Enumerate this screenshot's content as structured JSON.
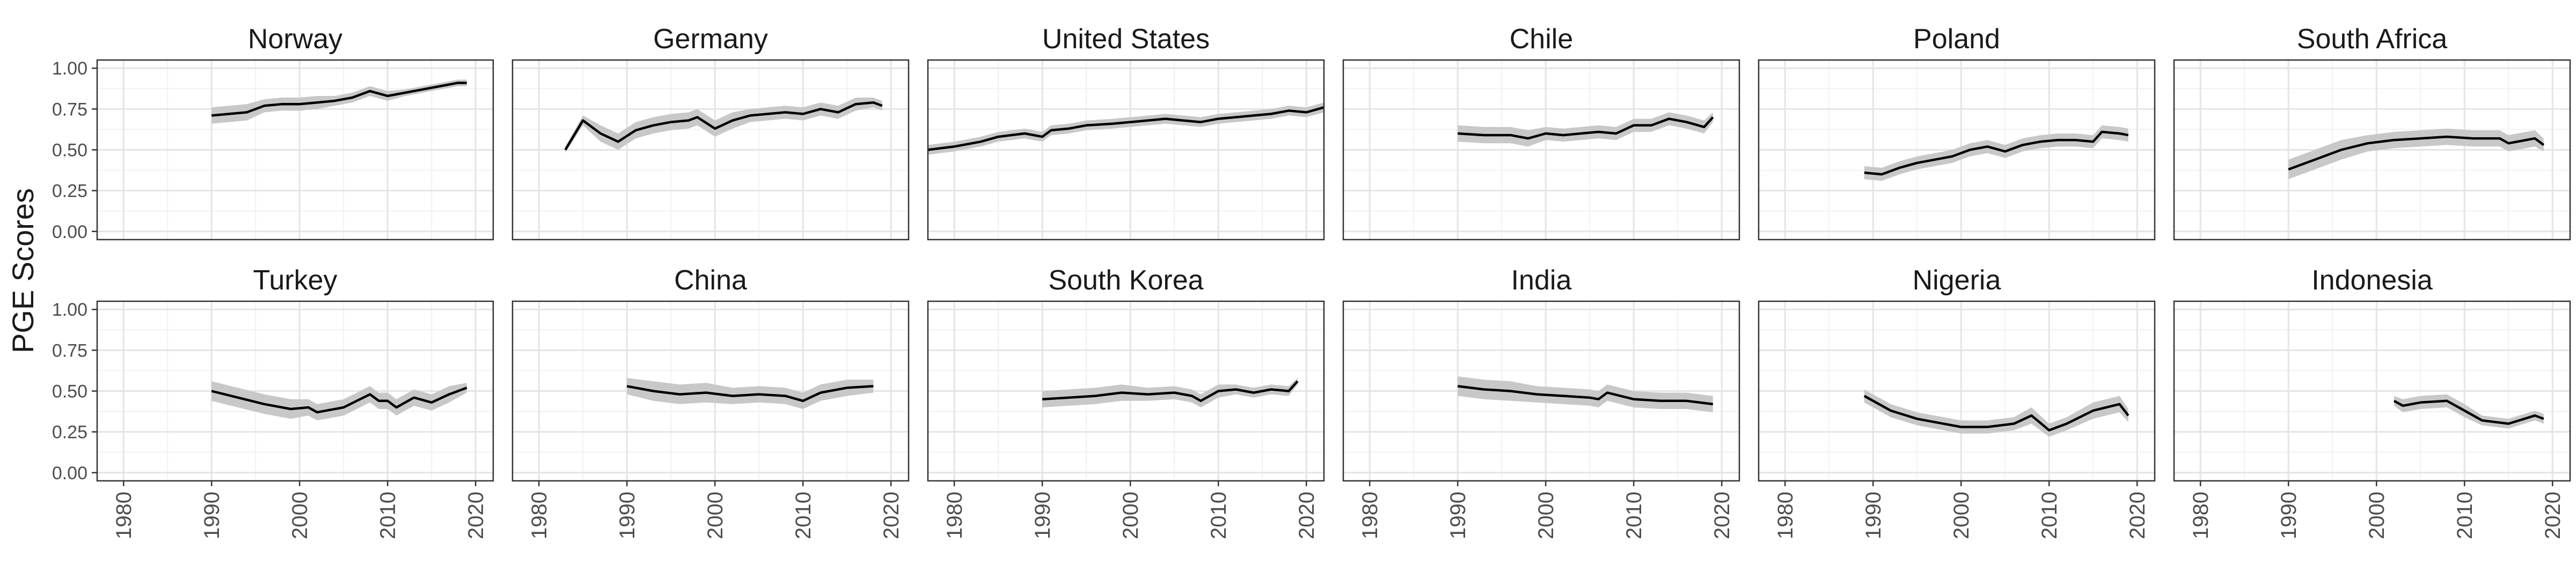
{
  "chart_data": {
    "type": "line",
    "layout": "small-multiples",
    "rows": 2,
    "cols": 6,
    "ylabel": "PGE Scores",
    "xlim": [
      1977,
      2022
    ],
    "ylim": [
      -0.05,
      1.05
    ],
    "x_ticks": [
      1980,
      1990,
      2000,
      2010,
      2020
    ],
    "y_ticks": [
      0.0,
      0.25,
      0.5,
      0.75,
      1.0
    ],
    "y_tick_labels": [
      "0.00",
      "0.25",
      "0.50",
      "0.75",
      "1.00"
    ],
    "grid": true,
    "line_color": "#000000",
    "band_color": "#c8c8c8",
    "panels": [
      {
        "title": "Norway",
        "x": [
          1990,
          1992,
          1994,
          1996,
          1998,
          2000,
          2002,
          2004,
          2006,
          2008,
          2010,
          2012,
          2014,
          2016,
          2018,
          2019
        ],
        "y": [
          0.71,
          0.72,
          0.73,
          0.77,
          0.78,
          0.78,
          0.79,
          0.8,
          0.82,
          0.86,
          0.83,
          0.85,
          0.87,
          0.89,
          0.91,
          0.91
        ],
        "band": [
          0.05,
          0.05,
          0.05,
          0.04,
          0.04,
          0.04,
          0.04,
          0.03,
          0.03,
          0.03,
          0.03,
          0.02,
          0.02,
          0.02,
          0.02,
          0.02
        ]
      },
      {
        "title": "Germany",
        "x": [
          1983,
          1985,
          1987,
          1989,
          1991,
          1993,
          1995,
          1997,
          1998,
          2000,
          2002,
          2004,
          2006,
          2008,
          2010,
          2012,
          2014,
          2016,
          2018,
          2019
        ],
        "y": [
          0.5,
          0.68,
          0.6,
          0.55,
          0.62,
          0.65,
          0.67,
          0.68,
          0.7,
          0.63,
          0.68,
          0.71,
          0.72,
          0.73,
          0.72,
          0.75,
          0.73,
          0.78,
          0.79,
          0.77
        ],
        "band": [
          0.02,
          0.03,
          0.05,
          0.05,
          0.05,
          0.05,
          0.05,
          0.05,
          0.05,
          0.05,
          0.05,
          0.04,
          0.04,
          0.04,
          0.04,
          0.04,
          0.04,
          0.04,
          0.03,
          0.03
        ]
      },
      {
        "title": "United States",
        "x": [
          1977,
          1980,
          1983,
          1985,
          1988,
          1990,
          1991,
          1993,
          1995,
          1998,
          2000,
          2002,
          2004,
          2006,
          2008,
          2010,
          2012,
          2014,
          2016,
          2018,
          2020,
          2022
        ],
        "y": [
          0.5,
          0.52,
          0.55,
          0.58,
          0.6,
          0.58,
          0.62,
          0.63,
          0.65,
          0.66,
          0.67,
          0.68,
          0.69,
          0.68,
          0.67,
          0.69,
          0.7,
          0.71,
          0.72,
          0.74,
          0.73,
          0.76
        ],
        "band": [
          0.03,
          0.03,
          0.03,
          0.03,
          0.03,
          0.03,
          0.03,
          0.03,
          0.03,
          0.03,
          0.03,
          0.03,
          0.03,
          0.03,
          0.03,
          0.03,
          0.03,
          0.03,
          0.03,
          0.03,
          0.03,
          0.03
        ]
      },
      {
        "title": "Chile",
        "x": [
          1990,
          1993,
          1996,
          1998,
          2000,
          2002,
          2004,
          2006,
          2008,
          2010,
          2012,
          2014,
          2016,
          2018,
          2019
        ],
        "y": [
          0.6,
          0.59,
          0.59,
          0.57,
          0.6,
          0.59,
          0.6,
          0.61,
          0.6,
          0.65,
          0.65,
          0.69,
          0.67,
          0.64,
          0.7
        ],
        "band": [
          0.05,
          0.05,
          0.05,
          0.05,
          0.04,
          0.04,
          0.04,
          0.04,
          0.04,
          0.04,
          0.04,
          0.04,
          0.04,
          0.04,
          0.03
        ]
      },
      {
        "title": "Poland",
        "x": [
          1989,
          1991,
          1993,
          1995,
          1997,
          1999,
          2001,
          2003,
          2005,
          2007,
          2009,
          2011,
          2013,
          2015,
          2016,
          2018,
          2019
        ],
        "y": [
          0.36,
          0.35,
          0.39,
          0.42,
          0.44,
          0.46,
          0.5,
          0.52,
          0.49,
          0.53,
          0.55,
          0.56,
          0.56,
          0.55,
          0.61,
          0.6,
          0.59
        ],
        "band": [
          0.04,
          0.04,
          0.04,
          0.04,
          0.04,
          0.04,
          0.04,
          0.04,
          0.04,
          0.04,
          0.04,
          0.04,
          0.04,
          0.04,
          0.04,
          0.04,
          0.04
        ]
      },
      {
        "title": "South Africa",
        "x": [
          1990,
          1993,
          1996,
          1999,
          2002,
          2005,
          2008,
          2011,
          2014,
          2015,
          2018,
          2019
        ],
        "y": [
          0.38,
          0.44,
          0.5,
          0.54,
          0.56,
          0.57,
          0.58,
          0.57,
          0.57,
          0.54,
          0.57,
          0.53
        ],
        "band": [
          0.06,
          0.06,
          0.06,
          0.05,
          0.05,
          0.05,
          0.05,
          0.05,
          0.05,
          0.05,
          0.05,
          0.04
        ]
      },
      {
        "title": "Turkey",
        "x": [
          1990,
          1993,
          1996,
          1999,
          2001,
          2002,
          2005,
          2008,
          2009,
          2010,
          2011,
          2013,
          2015,
          2017,
          2019
        ],
        "y": [
          0.5,
          0.46,
          0.42,
          0.39,
          0.4,
          0.37,
          0.4,
          0.48,
          0.44,
          0.44,
          0.4,
          0.46,
          0.43,
          0.48,
          0.52
        ],
        "band": [
          0.06,
          0.06,
          0.06,
          0.06,
          0.05,
          0.05,
          0.05,
          0.05,
          0.05,
          0.05,
          0.05,
          0.05,
          0.05,
          0.05,
          0.03
        ]
      },
      {
        "title": "China",
        "x": [
          1990,
          1993,
          1996,
          1999,
          2002,
          2005,
          2008,
          2010,
          2012,
          2015,
          2018
        ],
        "y": [
          0.53,
          0.5,
          0.48,
          0.49,
          0.47,
          0.48,
          0.47,
          0.44,
          0.49,
          0.52,
          0.53
        ],
        "band": [
          0.05,
          0.06,
          0.06,
          0.06,
          0.05,
          0.05,
          0.05,
          0.05,
          0.05,
          0.05,
          0.04
        ]
      },
      {
        "title": "South Korea",
        "x": [
          1990,
          1993,
          1996,
          1999,
          2002,
          2005,
          2007,
          2008,
          2010,
          2012,
          2014,
          2016,
          2018,
          2019
        ],
        "y": [
          0.45,
          0.46,
          0.47,
          0.49,
          0.48,
          0.49,
          0.47,
          0.44,
          0.5,
          0.51,
          0.49,
          0.51,
          0.5,
          0.56
        ],
        "band": [
          0.05,
          0.05,
          0.05,
          0.05,
          0.04,
          0.04,
          0.04,
          0.04,
          0.04,
          0.03,
          0.03,
          0.03,
          0.03,
          0.02
        ]
      },
      {
        "title": "India",
        "x": [
          1990,
          1993,
          1996,
          1999,
          2002,
          2005,
          2006,
          2007,
          2010,
          2013,
          2016,
          2019
        ],
        "y": [
          0.53,
          0.51,
          0.5,
          0.48,
          0.47,
          0.46,
          0.45,
          0.49,
          0.45,
          0.44,
          0.44,
          0.42
        ],
        "band": [
          0.06,
          0.06,
          0.06,
          0.05,
          0.05,
          0.05,
          0.05,
          0.05,
          0.05,
          0.05,
          0.05,
          0.05
        ]
      },
      {
        "title": "Nigeria",
        "x": [
          1989,
          1992,
          1995,
          1998,
          2000,
          2003,
          2006,
          2008,
          2010,
          2012,
          2015,
          2018,
          2019
        ],
        "y": [
          0.47,
          0.38,
          0.33,
          0.3,
          0.28,
          0.28,
          0.3,
          0.35,
          0.26,
          0.3,
          0.38,
          0.42,
          0.35
        ],
        "band": [
          0.04,
          0.04,
          0.04,
          0.04,
          0.04,
          0.04,
          0.04,
          0.05,
          0.04,
          0.04,
          0.05,
          0.05,
          0.04
        ]
      },
      {
        "title": "Indonesia",
        "x": [
          2002,
          2003,
          2005,
          2008,
          2010,
          2012,
          2015,
          2018,
          2019
        ],
        "y": [
          0.44,
          0.41,
          0.43,
          0.44,
          0.38,
          0.32,
          0.3,
          0.35,
          0.33
        ],
        "band": [
          0.03,
          0.04,
          0.04,
          0.04,
          0.04,
          0.03,
          0.03,
          0.03,
          0.03
        ]
      }
    ]
  }
}
